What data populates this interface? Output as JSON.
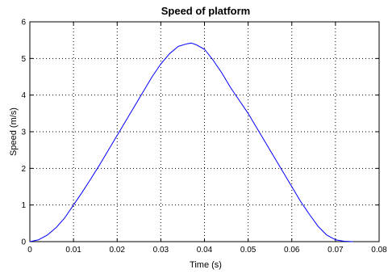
{
  "chart_data": {
    "type": "line",
    "title": "Speed of platform",
    "xlabel": "Time (s)",
    "ylabel": "Speed (m/s)",
    "xlim": [
      0,
      0.08
    ],
    "ylim": [
      0,
      6
    ],
    "xticks": [
      0,
      0.01,
      0.02,
      0.03,
      0.04,
      0.05,
      0.06,
      0.07,
      0.08
    ],
    "xtick_labels": [
      "0",
      "0.01",
      "0.02",
      "0.03",
      "0.04",
      "0.05",
      "0.06",
      "0.07",
      "0.08"
    ],
    "yticks": [
      0,
      1,
      2,
      3,
      4,
      5,
      6
    ],
    "ytick_labels": [
      "0",
      "1",
      "2",
      "3",
      "4",
      "5",
      "6"
    ],
    "grid": true,
    "grid_style": "dotted",
    "series": [
      {
        "color": "#0000ff",
        "x": [
          0,
          0.002,
          0.004,
          0.006,
          0.008,
          0.01,
          0.012,
          0.014,
          0.016,
          0.018,
          0.02,
          0.022,
          0.024,
          0.026,
          0.028,
          0.03,
          0.032,
          0.034,
          0.036,
          0.037,
          0.038,
          0.04,
          0.042,
          0.044,
          0.046,
          0.048,
          0.05,
          0.052,
          0.054,
          0.056,
          0.058,
          0.06,
          0.062,
          0.064,
          0.066,
          0.068,
          0.07,
          0.072,
          0.074
        ],
        "y": [
          0,
          0.05,
          0.18,
          0.38,
          0.65,
          1.0,
          1.35,
          1.72,
          2.1,
          2.5,
          2.9,
          3.3,
          3.7,
          4.1,
          4.5,
          4.85,
          5.13,
          5.33,
          5.4,
          5.42,
          5.38,
          5.25,
          4.95,
          4.6,
          4.2,
          3.85,
          3.5,
          3.1,
          2.7,
          2.3,
          1.9,
          1.5,
          1.1,
          0.75,
          0.42,
          0.18,
          0.05,
          0.01,
          0.0
        ]
      }
    ]
  }
}
